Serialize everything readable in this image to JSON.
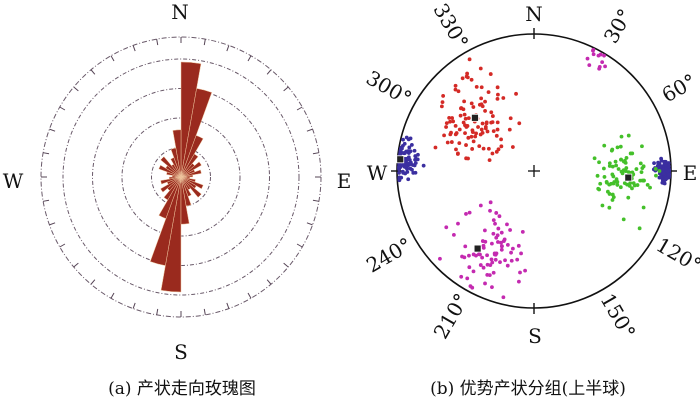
{
  "rose": {
    "labels": {
      "n": "N",
      "s": "S",
      "w": "W",
      "e": "E"
    },
    "caption": "(a) 产状走向玫瑰图",
    "bin_width_deg": 10,
    "ring_count": 4,
    "strike_bins_0_180": [
      3.9,
      3.05,
      1.5,
      0.9,
      0.6,
      0.8,
      0.5,
      0.7,
      0.4,
      0.3,
      0.5,
      0.8,
      0.6,
      0.9,
      0.5,
      0.7,
      1.0,
      1.6
    ],
    "bar_color": "#9a2a1e"
  },
  "stereonet": {
    "labels": {
      "n": "N",
      "s": "S",
      "w": "W",
      "e": "E"
    },
    "degree_labels": [
      {
        "az": 30,
        "text": "30°"
      },
      {
        "az": 60,
        "text": "60°"
      },
      {
        "az": 120,
        "text": "120°"
      },
      {
        "az": 150,
        "text": "150°"
      },
      {
        "az": 210,
        "text": "210°"
      },
      {
        "az": 240,
        "text": "240°"
      },
      {
        "az": 300,
        "text": "300°"
      },
      {
        "az": 330,
        "text": "330°"
      }
    ],
    "caption": "(b) 优势产状分组(上半球)",
    "groups": [
      {
        "name": "group-red",
        "color": "#d42a26",
        "mean_az": 312,
        "mean_r": 0.58,
        "count": 110,
        "spread": 0.22
      },
      {
        "name": "group-blue-west",
        "color": "#3b2fa0",
        "mean_az": 275,
        "mean_r": 0.95,
        "count": 90,
        "spread": 0.1
      },
      {
        "name": "group-blue-east",
        "color": "#3b2fa0",
        "mean_az": 90,
        "mean_r": 0.95,
        "count": 110,
        "spread": 0.06
      },
      {
        "name": "group-green",
        "color": "#44c02a",
        "mean_az": 94,
        "mean_r": 0.66,
        "count": 90,
        "spread": 0.2
      },
      {
        "name": "group-magenta",
        "color": "#c42ab0",
        "mean_az": 210,
        "mean_r": 0.68,
        "count": 80,
        "spread": 0.25
      },
      {
        "name": "group-magenta-ne",
        "color": "#c42ab0",
        "mean_az": 30,
        "mean_r": 0.92,
        "count": 12,
        "spread": 0.08
      }
    ],
    "mean_poles": [
      {
        "az": 312,
        "r": 0.58
      },
      {
        "az": 216,
        "r": 0.7
      },
      {
        "az": 94,
        "r": 0.69
      },
      {
        "az": 275,
        "r": 0.98
      }
    ]
  }
}
